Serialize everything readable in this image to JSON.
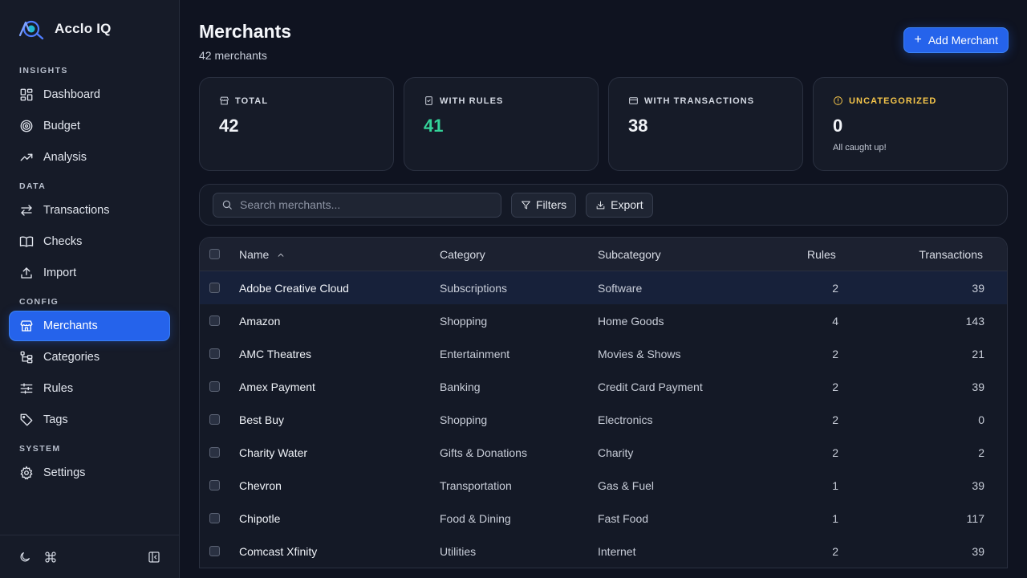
{
  "brand": {
    "name": "Acclo IQ"
  },
  "nav": {
    "sections": [
      {
        "title": "INSIGHTS",
        "items": [
          {
            "label": "Dashboard",
            "icon": "dashboard-icon"
          },
          {
            "label": "Budget",
            "icon": "target-icon"
          },
          {
            "label": "Analysis",
            "icon": "trend-icon"
          }
        ]
      },
      {
        "title": "DATA",
        "items": [
          {
            "label": "Transactions",
            "icon": "swap-icon"
          },
          {
            "label": "Checks",
            "icon": "book-icon"
          },
          {
            "label": "Import",
            "icon": "upload-icon"
          }
        ]
      },
      {
        "title": "CONFIG",
        "items": [
          {
            "label": "Merchants",
            "icon": "store-icon",
            "active": true
          },
          {
            "label": "Categories",
            "icon": "tree-icon"
          },
          {
            "label": "Rules",
            "icon": "sliders-icon"
          },
          {
            "label": "Tags",
            "icon": "tag-icon"
          }
        ]
      },
      {
        "title": "SYSTEM",
        "items": [
          {
            "label": "Settings",
            "icon": "gear-icon"
          }
        ]
      }
    ]
  },
  "header": {
    "title": "Merchants",
    "subtitle": "42 merchants",
    "add_button": "Add Merchant"
  },
  "stats": [
    {
      "label": "TOTAL",
      "value": "42",
      "icon": "store-icon"
    },
    {
      "label": "WITH RULES",
      "value": "41",
      "icon": "clipboard-check-icon",
      "accent": "#34d399"
    },
    {
      "label": "WITH TRANSACTIONS",
      "value": "38",
      "icon": "card-icon"
    },
    {
      "label": "UNCATEGORIZED",
      "value": "0",
      "icon": "alert-circle-icon",
      "note": "All caught up!",
      "accent": "#f6c64a"
    }
  ],
  "toolbar": {
    "search_placeholder": "Search merchants...",
    "filters_label": "Filters",
    "export_label": "Export"
  },
  "table": {
    "columns": [
      "Name",
      "Category",
      "Subcategory",
      "Rules",
      "Transactions"
    ],
    "rows": [
      {
        "name": "Adobe Creative Cloud",
        "category": "Subscriptions",
        "subcategory": "Software",
        "rules": "2",
        "transactions": "39"
      },
      {
        "name": "Amazon",
        "category": "Shopping",
        "subcategory": "Home Goods",
        "rules": "4",
        "transactions": "143"
      },
      {
        "name": "AMC Theatres",
        "category": "Entertainment",
        "subcategory": "Movies & Shows",
        "rules": "2",
        "transactions": "21"
      },
      {
        "name": "Amex Payment",
        "category": "Banking",
        "subcategory": "Credit Card Payment",
        "rules": "2",
        "transactions": "39"
      },
      {
        "name": "Best Buy",
        "category": "Shopping",
        "subcategory": "Electronics",
        "rules": "2",
        "transactions": "0"
      },
      {
        "name": "Charity Water",
        "category": "Gifts & Donations",
        "subcategory": "Charity",
        "rules": "2",
        "transactions": "2"
      },
      {
        "name": "Chevron",
        "category": "Transportation",
        "subcategory": "Gas & Fuel",
        "rules": "1",
        "transactions": "39"
      },
      {
        "name": "Chipotle",
        "category": "Food & Dining",
        "subcategory": "Fast Food",
        "rules": "1",
        "transactions": "117"
      },
      {
        "name": "Comcast Xfinity",
        "category": "Utilities",
        "subcategory": "Internet",
        "rules": "2",
        "transactions": "39"
      }
    ]
  },
  "colors": {
    "accent": "#2563eb",
    "success": "#34d399",
    "warning": "#f6c64a",
    "background": "#0f1320"
  }
}
